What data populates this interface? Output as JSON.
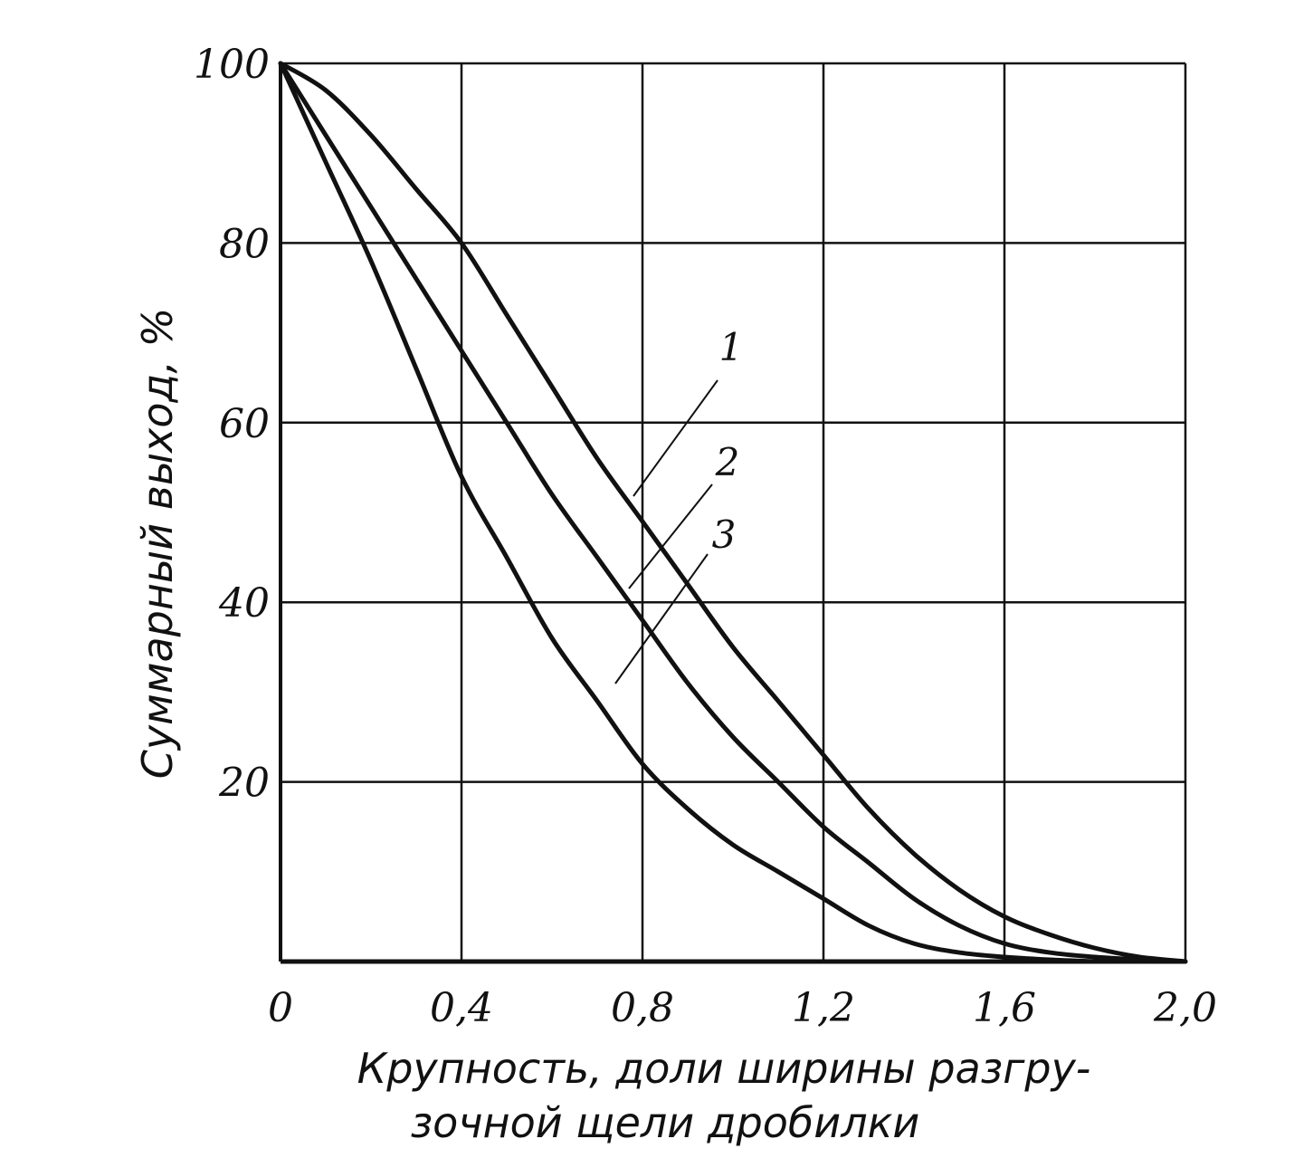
{
  "chart_data": {
    "type": "line",
    "xlabel_line1": "Крупность, доли ширины разгру-",
    "xlabel_line2": "зочной щели дробилки",
    "ylabel": "Суммарный выход, %",
    "xlim": [
      0,
      2.0
    ],
    "ylim": [
      0,
      100
    ],
    "x_ticks": [
      0,
      0.4,
      0.8,
      1.2,
      1.6,
      2.0
    ],
    "x_tick_labels": [
      "0",
      "0,4",
      "0,8",
      "1,2",
      "1,6",
      "2,0"
    ],
    "y_ticks": [
      20,
      40,
      60,
      80,
      100
    ],
    "y_tick_labels": [
      "20",
      "40",
      "60",
      "80",
      "100"
    ],
    "grid": true,
    "line_color": "#111111",
    "series": [
      {
        "name": "1",
        "x": [
          0,
          0.1,
          0.2,
          0.3,
          0.4,
          0.5,
          0.6,
          0.7,
          0.8,
          0.9,
          1.0,
          1.1,
          1.2,
          1.3,
          1.4,
          1.5,
          1.6,
          1.7,
          1.8,
          1.9,
          2.0
        ],
        "y": [
          100,
          97,
          92,
          86,
          80,
          72,
          64,
          56,
          49,
          42,
          35,
          29,
          23,
          17,
          12,
          8,
          5,
          3,
          1.5,
          0.5,
          0
        ]
      },
      {
        "name": "2",
        "x": [
          0,
          0.1,
          0.2,
          0.3,
          0.4,
          0.5,
          0.6,
          0.7,
          0.8,
          0.9,
          1.0,
          1.1,
          1.2,
          1.3,
          1.4,
          1.5,
          1.6,
          1.7,
          1.8,
          1.9,
          2.0
        ],
        "y": [
          100,
          92,
          84,
          76,
          68,
          60,
          52,
          45,
          38,
          31,
          25,
          20,
          15,
          11,
          7,
          4,
          2,
          1,
          0.5,
          0.2,
          0
        ]
      },
      {
        "name": "3",
        "x": [
          0,
          0.1,
          0.2,
          0.3,
          0.4,
          0.5,
          0.6,
          0.7,
          0.8,
          0.9,
          1.0,
          1.1,
          1.2,
          1.3,
          1.4,
          1.5,
          1.6,
          1.7,
          1.8
        ],
        "y": [
          100,
          89,
          78,
          66,
          54,
          45,
          36,
          29,
          22,
          17,
          13,
          10,
          7,
          4,
          2,
          1,
          0.5,
          0.2,
          0
        ]
      }
    ]
  }
}
